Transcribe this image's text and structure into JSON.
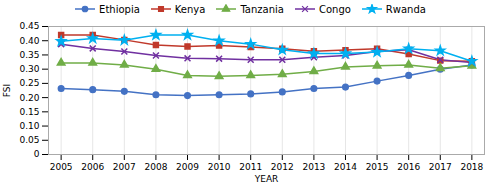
{
  "chart_data": {
    "type": "line",
    "x": [
      2005,
      2006,
      2007,
      2008,
      2009,
      2010,
      2011,
      2012,
      2013,
      2014,
      2015,
      2016,
      2017,
      2018
    ],
    "series": [
      {
        "name": "Ethiopia",
        "color": "#4472C4",
        "marker": "circle",
        "values": [
          0.232,
          0.228,
          0.222,
          0.21,
          0.207,
          0.21,
          0.213,
          0.22,
          0.232,
          0.237,
          0.258,
          0.278,
          0.3,
          0.315
        ]
      },
      {
        "name": "Kenya",
        "color": "#C0392B",
        "marker": "square",
        "values": [
          0.42,
          0.42,
          0.403,
          0.385,
          0.38,
          0.383,
          0.378,
          0.372,
          0.363,
          0.367,
          0.372,
          0.353,
          0.33,
          0.328
        ]
      },
      {
        "name": "Tanzania",
        "color": "#70AD47",
        "marker": "triangle",
        "values": [
          0.322,
          0.322,
          0.315,
          0.3,
          0.278,
          0.275,
          0.278,
          0.282,
          0.292,
          0.308,
          0.312,
          0.315,
          0.303,
          0.312
        ]
      },
      {
        "name": "Congo",
        "color": "#7030A0",
        "marker": "x",
        "values": [
          0.388,
          0.373,
          0.362,
          0.348,
          0.338,
          0.337,
          0.333,
          0.333,
          0.342,
          0.348,
          0.362,
          0.368,
          0.333,
          0.323
        ]
      },
      {
        "name": "Rwanda",
        "color": "#00B0F0",
        "marker": "star",
        "values": [
          0.398,
          0.408,
          0.402,
          0.42,
          0.42,
          0.4,
          0.388,
          0.368,
          0.355,
          0.355,
          0.36,
          0.372,
          0.365,
          0.328
        ]
      }
    ],
    "xlabel": "YEAR",
    "ylabel": "FSI",
    "xlim": [
      2004.6,
      2018.4
    ],
    "xticks": [
      2005,
      2006,
      2007,
      2008,
      2009,
      2010,
      2011,
      2012,
      2013,
      2014,
      2015,
      2016,
      2017,
      2018
    ],
    "ylim": [
      0,
      0.45
    ],
    "yticks": [
      0,
      0.05,
      {
        "value": 0.1,
        "label": "0.10"
      },
      0.15,
      {
        "value": 0.2,
        "label": "0.20"
      },
      0.25,
      {
        "value": 0.3,
        "label": "0.30"
      },
      0.35,
      {
        "value": 0.4,
        "label": "0.40"
      },
      0.45
    ],
    "grid": "x",
    "legend": "top"
  }
}
